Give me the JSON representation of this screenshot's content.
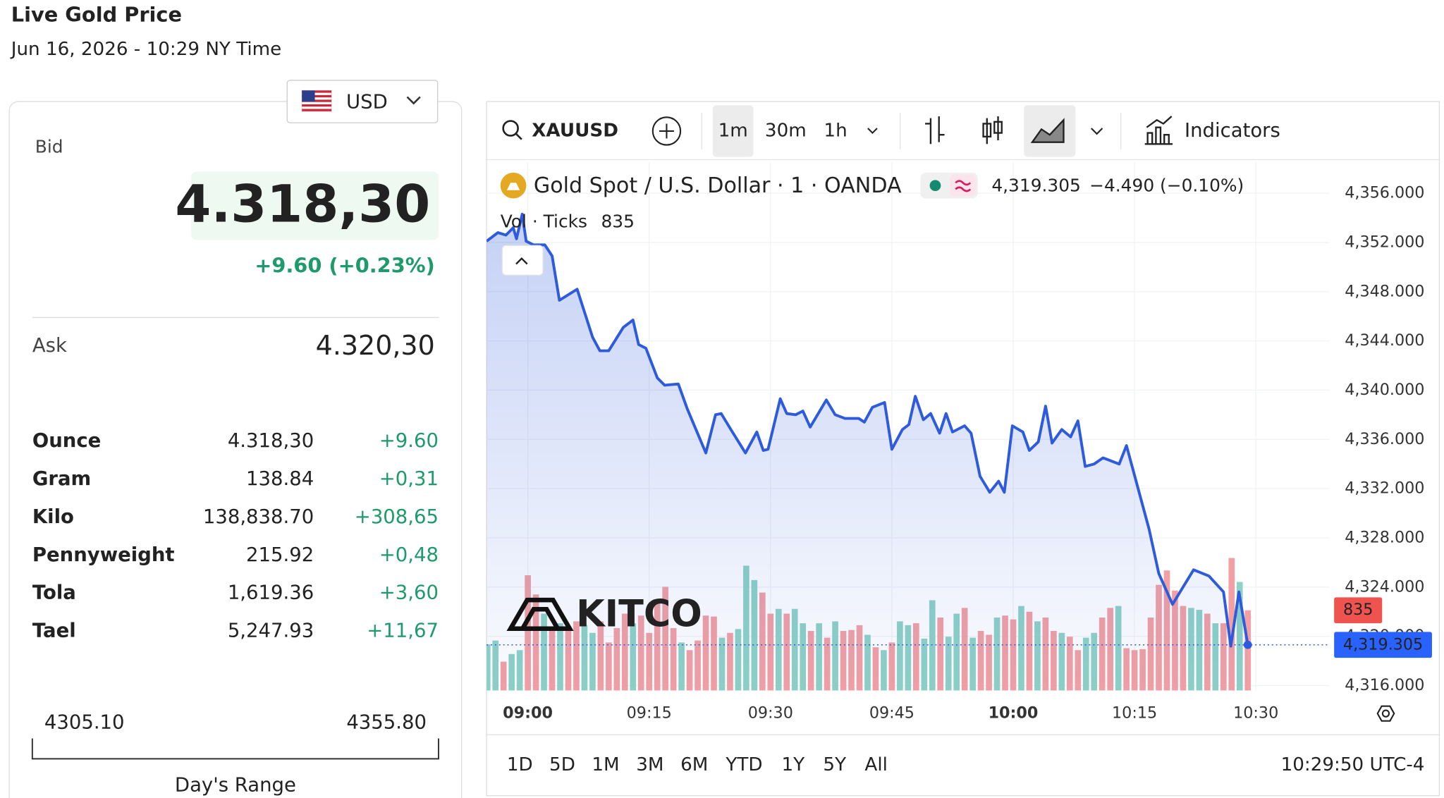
{
  "header": {
    "title": "Live Gold Price",
    "date": "Jun 16, 2026 - 10:29 NY Time"
  },
  "currency": "USD",
  "quote": {
    "bid_label": "Bid",
    "bid": "4.318,30",
    "change": "+9.60 (+0.23%)",
    "ask_label": "Ask",
    "ask": "4.320,30"
  },
  "table": {
    "rows": [
      [
        "Ounce",
        "4.318,30",
        "+9.60"
      ],
      [
        "Gram",
        "138.84",
        "+0,31"
      ],
      [
        "Kilo",
        "138,838.70",
        "+308,65"
      ],
      [
        "Pennyweight",
        "215.92",
        "+0,48"
      ],
      [
        "Tola",
        "1,619.36",
        "+3,60"
      ],
      [
        "Tael",
        "5,247.93",
        "+11,67"
      ]
    ]
  },
  "range": {
    "low": "4305.10",
    "high": "4355.80",
    "label": "Day's Range"
  },
  "toolbar": {
    "symbol": "XAUUSD",
    "intervals": [
      "1m",
      "30m",
      "1h"
    ],
    "indicators": "Indicators"
  },
  "periods": [
    "1D",
    "5D",
    "1M",
    "3M",
    "6M",
    "YTD",
    "1Y",
    "5Y",
    "All"
  ],
  "clock": "10:29:50 UTC-4",
  "chart_data": {
    "type": "line",
    "title": "Gold Spot / U.S. Dollar · 1 · OANDA",
    "last_price": {
      "value": 4319.305,
      "label": "4,319.305"
    },
    "change": "−4.490 (−0.10%)",
    "volume_label": "Vol · Ticks",
    "last_volume": 835,
    "watermark": "KITCO",
    "color": "#2e5bdc",
    "x": [
      -5.1,
      -3.7,
      -2.7,
      -1.8,
      -1.4,
      -0.7,
      -0.2,
      0.7,
      2.1,
      3.0,
      3.9,
      6.1,
      8.0,
      8.9,
      10.0,
      11.8,
      13.0,
      13.7,
      14.6,
      16.0,
      16.9,
      18.6,
      19.7,
      22.0,
      23.2,
      23.9,
      25.1,
      26.9,
      28.3,
      29.1,
      29.7,
      31.2,
      32.0,
      33.1,
      34.0,
      34.9,
      36.9,
      38.0,
      39.2,
      40.9,
      41.6,
      42.6,
      44.1,
      45.0,
      46.3,
      47.1,
      47.9,
      48.9,
      49.8,
      50.9,
      51.7,
      52.5,
      54.0,
      54.8,
      55.9,
      57.1,
      58.2,
      58.9,
      59.9,
      61.2,
      62.0,
      63.1,
      64.0,
      64.8,
      66.0,
      67.1,
      68.0,
      68.9,
      70.0,
      71.1,
      73.1,
      74.0,
      76.8,
      78.0,
      79.7,
      80.8,
      82.3,
      84.2,
      86.0,
      86.9,
      87.9,
      89.0
    ],
    "values": [
      4352.1,
      4352.8,
      4352.6,
      4353.2,
      4352.3,
      4354.3,
      4352.1,
      4351.8,
      4351.8,
      4350.9,
      4347.3,
      4348.2,
      4344.3,
      4343.2,
      4343.2,
      4345.1,
      4345.7,
      4343.7,
      4343.4,
      4341.0,
      4340.4,
      4340.5,
      4338.5,
      4334.9,
      4338.0,
      4338.1,
      4336.8,
      4334.9,
      4336.6,
      4335.1,
      4335.2,
      4339.3,
      4338.1,
      4338.0,
      4338.3,
      4337.0,
      4339.2,
      4338.0,
      4337.7,
      4337.7,
      4337.4,
      4338.6,
      4339.0,
      4335.2,
      4336.8,
      4337.2,
      4339.5,
      4337.6,
      4338.1,
      4336.5,
      4338.1,
      4336.6,
      4337.1,
      4336.5,
      4333.0,
      4331.7,
      4332.6,
      4331.7,
      4337.1,
      4336.6,
      4335.1,
      4335.8,
      4338.7,
      4335.7,
      4336.8,
      4336.2,
      4337.5,
      4333.8,
      4334.0,
      4334.5,
      4334.0,
      4335.5,
      4328.7,
      4325.1,
      4322.6,
      4323.8,
      4325.4,
      4324.9,
      4323.6,
      4319.2,
      4323.6,
      4319.305
    ],
    "volume": {
      "x": [
        -5,
        -4,
        -3,
        -2,
        -1,
        0,
        1,
        2,
        3,
        4,
        5,
        6,
        7,
        8,
        9,
        10,
        11,
        12,
        13,
        14,
        15,
        16,
        17,
        18,
        19,
        20,
        21,
        22,
        23,
        24,
        25,
        26,
        27,
        28,
        29,
        30,
        31,
        32,
        33,
        34,
        35,
        36,
        37,
        38,
        39,
        40,
        41,
        42,
        43,
        44,
        45,
        46,
        47,
        48,
        49,
        50,
        51,
        52,
        53,
        54,
        55,
        56,
        57,
        58,
        59,
        60,
        61,
        62,
        63,
        64,
        65,
        66,
        67,
        68,
        69,
        70,
        71,
        72,
        73,
        74,
        75,
        76,
        77,
        78,
        79,
        80,
        81,
        82,
        83,
        84,
        85,
        86,
        87,
        88,
        89
      ],
      "values": [
        480,
        520,
        300,
        380,
        420,
        1200,
        1000,
        800,
        620,
        700,
        650,
        720,
        680,
        600,
        720,
        500,
        650,
        800,
        700,
        780,
        600,
        950,
        1080,
        650,
        500,
        420,
        520,
        780,
        770,
        550,
        600,
        640,
        1300,
        1150,
        1020,
        800,
        850,
        800,
        850,
        700,
        620,
        700,
        550,
        720,
        620,
        630,
        680,
        580,
        450,
        420,
        500,
        720,
        680,
        700,
        540,
        940,
        760,
        560,
        800,
        860,
        550,
        620,
        580,
        760,
        780,
        740,
        880,
        820,
        720,
        760,
        620,
        600,
        560,
        420,
        550,
        600,
        760,
        860,
        880,
        440,
        420,
        430,
        760,
        1100,
        1250,
        1040,
        880,
        860,
        840,
        800,
        700,
        700,
        1380,
        1130,
        835
      ],
      "colors": [
        "#8ed1c6",
        "#8ed1c6",
        "#f2a0a3",
        "#8ed1c6",
        "#8ed1c6",
        "#f2a0a3",
        "#f2a0a3",
        "#8ed1c6",
        "#f2a0a3",
        "#8ed1c6",
        "#f2a0a3",
        "#f2a0a3",
        "#8ed1c6",
        "#8ed1c6",
        "#f2a0a3",
        "#f2a0a3",
        "#f2a0a3",
        "#f2a0a3",
        "#8ed1c6",
        "#f2a0a3",
        "#f2a0a3",
        "#f2a0a3",
        "#f2a0a3",
        "#f2a0a3",
        "#8ed1c6",
        "#f2a0a3",
        "#f2a0a3",
        "#f2a0a3",
        "#f2a0a3",
        "#8ed1c6",
        "#f2a0a3",
        "#8ed1c6",
        "#8ed1c6",
        "#8ed1c6",
        "#f2a0a3",
        "#f2a0a3",
        "#8ed1c6",
        "#f2a0a3",
        "#8ed1c6",
        "#8ed1c6",
        "#f2a0a3",
        "#8ed1c6",
        "#f2a0a3",
        "#8ed1c6",
        "#f2a0a3",
        "#f2a0a3",
        "#f2a0a3",
        "#8ed1c6",
        "#f2a0a3",
        "#8ed1c6",
        "#f2a0a3",
        "#8ed1c6",
        "#8ed1c6",
        "#f2a0a3",
        "#8ed1c6",
        "#8ed1c6",
        "#f2a0a3",
        "#8ed1c6",
        "#8ed1c6",
        "#f2a0a3",
        "#8ed1c6",
        "#f2a0a3",
        "#f2a0a3",
        "#8ed1c6",
        "#f2a0a3",
        "#f2a0a3",
        "#8ed1c6",
        "#f2a0a3",
        "#8ed1c6",
        "#f2a0a3",
        "#f2a0a3",
        "#8ed1c6",
        "#f2a0a3",
        "#f2a0a3",
        "#8ed1c6",
        "#8ed1c6",
        "#f2a0a3",
        "#f2a0a3",
        "#8ed1c6",
        "#f2a0a3",
        "#f2a0a3",
        "#f2a0a3",
        "#f2a0a3",
        "#f2a0a3",
        "#f2a0a3",
        "#f2a0a3",
        "#f2a0a3",
        "#8ed1c6",
        "#8ed1c6",
        "#f2a0a3",
        "#8ed1c6",
        "#f2a0a3",
        "#f2a0a3",
        "#8ed1c6",
        "#f2a0a3"
      ]
    },
    "vol_lim": [
      0,
      5500
    ],
    "xlim": [
      -5.1,
      99.1
    ],
    "xticks": [
      {
        "value": 0,
        "label": "09:00"
      },
      {
        "value": 15,
        "label": "09:15"
      },
      {
        "value": 30,
        "label": "09:30"
      },
      {
        "value": 45,
        "label": "09:45"
      },
      {
        "value": 60,
        "label": "10:00"
      },
      {
        "value": 75,
        "label": "10:15"
      },
      {
        "value": 90,
        "label": "10:30"
      }
    ],
    "ylim": [
      4315.6,
      4358.5
    ],
    "yticks": [
      {
        "value": 4316,
        "label": "4,316.000"
      },
      {
        "value": 4320,
        "label": "4,320.000"
      },
      {
        "value": 4324,
        "label": "4,324.000"
      },
      {
        "value": 4328,
        "label": "4,328.000"
      },
      {
        "value": 4332,
        "label": "4,332.000"
      },
      {
        "value": 4336,
        "label": "4,336.000"
      },
      {
        "value": 4340,
        "label": "4,340.000"
      },
      {
        "value": 4344,
        "label": "4,344.000"
      },
      {
        "value": 4348,
        "label": "4,348.000"
      },
      {
        "value": 4352,
        "label": "4,352.000"
      },
      {
        "value": 4356,
        "label": "4,356.000"
      }
    ],
    "grid": true
  }
}
